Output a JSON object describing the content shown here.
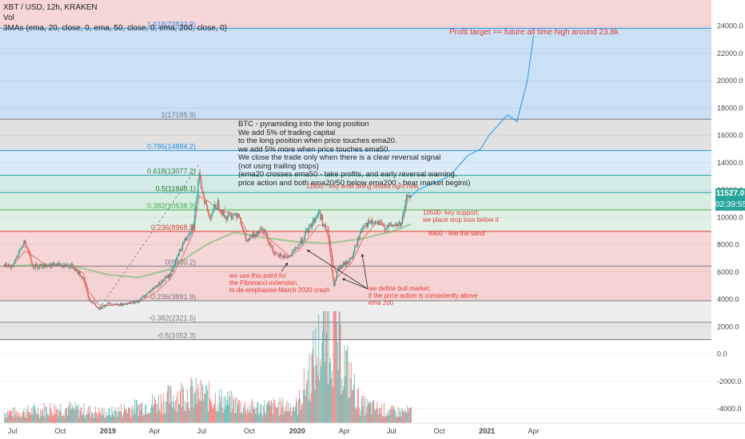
{
  "header": {
    "title": "XBT / USD, 12h, KRAKEN",
    "vol_label": "Vol",
    "indicator_label": "3MAs (ema, 20, close, 0, ema, 50, close, 0, ema, 200, close, 0)"
  },
  "price_tags": {
    "last_price": "11527.0",
    "countdown": "02:39:55",
    "color": "#26a69a"
  },
  "chart_data": {
    "type": "candlestick",
    "ylim": [
      -5000,
      26000
    ],
    "y_ticks": [
      "24000.0",
      "22000.0",
      "20000.0",
      "18000.0",
      "16000.0",
      "14000.0",
      "12000.0",
      "10000.0",
      "8000.0",
      "6000.0",
      "4000.0",
      "2000.0",
      "0.0",
      "-2000.0",
      "-4000.0"
    ],
    "y_tick_values": [
      24000,
      22000,
      20000,
      18000,
      16000,
      14000,
      12000,
      10000,
      8000,
      6000,
      4000,
      2000,
      0,
      -2000,
      -4000
    ],
    "x_ticks": [
      "Jul",
      "Oct",
      "2019",
      "Apr",
      "Jul",
      "Oct",
      "2020",
      "Apr",
      "Jul",
      "Oct",
      "2021",
      "Apr"
    ],
    "x_tick_dates": [
      "2018-07-01",
      "2018-10-01",
      "2019-01-01",
      "2019-04-01",
      "2019-07-01",
      "2019-10-01",
      "2020-01-01",
      "2020-04-01",
      "2020-07-01",
      "2020-10-01",
      "2021-01-01",
      "2021-04-01"
    ],
    "fib_levels": [
      {
        "label": "1.618(23832.9)",
        "value": 23832.9
      },
      {
        "label": "1(17185.9)",
        "value": 17185.9
      },
      {
        "label": "0.786(14884.2)",
        "value": 14884.2
      },
      {
        "label": "0.618(13077.2)",
        "value": 13077.2
      },
      {
        "label": "0.5(11808.1)",
        "value": 11808.1
      },
      {
        "label": "0.382(10538.9)",
        "value": 10538.9
      },
      {
        "label": "0.236(8968.5)",
        "value": 8968.5
      },
      {
        "label": "0(6430.2)",
        "value": 6430.2
      },
      {
        "label": "-0.236(3891.9)",
        "value": 3891.9
      },
      {
        "label": "-0.382(2321.5)",
        "value": 2321.5
      },
      {
        "label": "-0.5(1052.3)",
        "value": 1052.3
      }
    ],
    "price_series": {
      "name": "XBT/USD",
      "x": [
        "2018-06-15",
        "2018-07-01",
        "2018-07-25",
        "2018-08-10",
        "2018-09-05",
        "2018-10-01",
        "2018-10-25",
        "2018-11-15",
        "2018-11-25",
        "2018-12-15",
        "2019-01-01",
        "2019-02-01",
        "2019-03-01",
        "2019-04-05",
        "2019-05-01",
        "2019-05-25",
        "2019-06-15",
        "2019-06-26",
        "2019-07-15",
        "2019-08-01",
        "2019-08-15",
        "2019-09-10",
        "2019-09-25",
        "2019-10-26",
        "2019-11-20",
        "2019-12-18",
        "2020-01-05",
        "2020-02-12",
        "2020-03-01",
        "2020-03-12",
        "2020-03-20",
        "2020-04-15",
        "2020-05-08",
        "2020-06-01",
        "2020-06-20",
        "2020-07-20",
        "2020-07-28",
        "2020-08-02",
        "2020-08-08"
      ],
      "values": [
        6500,
        6400,
        8300,
        6400,
        6500,
        6500,
        6400,
        5500,
        4000,
        3300,
        3700,
        3600,
        3900,
        5000,
        5800,
        8000,
        9500,
        12900,
        10000,
        11000,
        10000,
        10300,
        8200,
        9300,
        7200,
        7100,
        8000,
        10400,
        8600,
        4900,
        6200,
        7000,
        9500,
        9600,
        9300,
        9500,
        11000,
        11800,
        11500
      ]
    },
    "projection": {
      "x": [
        "2020-08-20",
        "2020-10-20",
        "2020-11-25",
        "2020-12-20",
        "2021-01-05",
        "2021-02-10",
        "2021-02-28",
        "2021-03-20",
        "2021-04-01"
      ],
      "values": [
        12000,
        13000,
        14500,
        15000,
        16000,
        17500,
        17000,
        20000,
        23300
      ]
    },
    "ema_200": {
      "x": [
        "2018-06-15",
        "2018-09-01",
        "2018-10-15",
        "2018-11-20",
        "2019-01-01",
        "2019-03-01",
        "2019-05-01",
        "2019-06-15",
        "2019-07-15",
        "2019-09-01",
        "2019-11-01",
        "2020-01-01",
        "2020-03-01",
        "2020-05-01",
        "2020-07-01",
        "2020-08-08"
      ],
      "values": [
        6400,
        6550,
        6600,
        6200,
        5800,
        5600,
        6200,
        7400,
        8100,
        8900,
        8500,
        8200,
        8100,
        8400,
        8950,
        9500
      ]
    },
    "volume": {
      "x": [
        "2018-07",
        "2018-10",
        "2019-01",
        "2019-04",
        "2019-06",
        "2019-07",
        "2019-10",
        "2020-01",
        "2020-03",
        "2020-05",
        "2020-07"
      ],
      "values": [
        100,
        150,
        100,
        200,
        300,
        280,
        150,
        170,
        1000,
        180,
        110
      ]
    }
  },
  "notes": {
    "main": [
      "BTC - pyramiding into the long position",
      "We add 5% of trading capital",
      "to the long position when price touches ema20.",
      "we add 5% more when price touches ema50.",
      "We close the trade only when there is a clear reversal signal",
      "(not using trailing stops)",
      "(ema20 crosses ema50 - take profits, and early reversal warning.",
      "price action and both ema20/50 below ema200 - bear market begins)"
    ],
    "target": "Profit target == future all time high around 23.8k",
    "level_11800": "11800 - key level being tested right now.",
    "level_10500": [
      "10500- key support,",
      "we place stop loss below it"
    ],
    "level_8900": "8900 - line the sand",
    "fib_point": [
      "we use this point for",
      "the Fibonacci extension,",
      "to de-emphasise March 2020 crash"
    ],
    "bull_market": [
      "we define bull market,",
      "if the price action is consistently above",
      "ema 200"
    ]
  },
  "colors": {
    "up": "#26a69a",
    "down": "#ef5350",
    "projection": "#2196f3",
    "ema_200": "#66bb6a",
    "annotation": "#e53935"
  }
}
